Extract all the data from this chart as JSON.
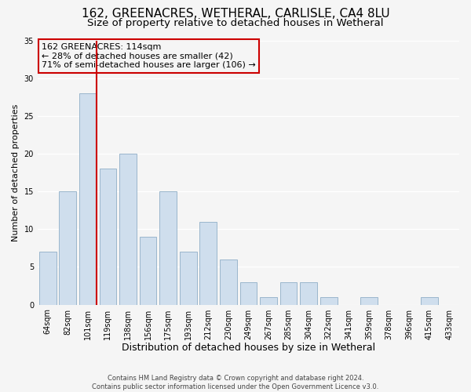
{
  "title": "162, GREENACRES, WETHERAL, CARLISLE, CA4 8LU",
  "subtitle": "Size of property relative to detached houses in Wetheral",
  "xlabel": "Distribution of detached houses by size in Wetheral",
  "ylabel": "Number of detached properties",
  "categories": [
    "64sqm",
    "82sqm",
    "101sqm",
    "119sqm",
    "138sqm",
    "156sqm",
    "175sqm",
    "193sqm",
    "212sqm",
    "230sqm",
    "249sqm",
    "267sqm",
    "285sqm",
    "304sqm",
    "322sqm",
    "341sqm",
    "359sqm",
    "378sqm",
    "396sqm",
    "415sqm",
    "433sqm"
  ],
  "values": [
    7,
    15,
    28,
    18,
    20,
    9,
    15,
    7,
    11,
    6,
    3,
    1,
    3,
    3,
    1,
    0,
    1,
    0,
    0,
    1,
    0
  ],
  "bar_color": "#cfdeed",
  "bar_edge_color": "#9ab6cc",
  "vline_color": "#cc0000",
  "ylim": [
    0,
    35
  ],
  "yticks": [
    0,
    5,
    10,
    15,
    20,
    25,
    30,
    35
  ],
  "annotation_title": "162 GREENACRES: 114sqm",
  "annotation_line1": "← 28% of detached houses are smaller (42)",
  "annotation_line2": "71% of semi-detached houses are larger (106) →",
  "annotation_box_edge": "#cc0000",
  "footer_line1": "Contains HM Land Registry data © Crown copyright and database right 2024.",
  "footer_line2": "Contains public sector information licensed under the Open Government Licence v3.0.",
  "background_color": "#f5f5f5",
  "title_fontsize": 11,
  "subtitle_fontsize": 9.5,
  "xlabel_fontsize": 9,
  "ylabel_fontsize": 8,
  "tick_fontsize": 7,
  "annotation_fontsize": 8,
  "footer_fontsize": 6
}
